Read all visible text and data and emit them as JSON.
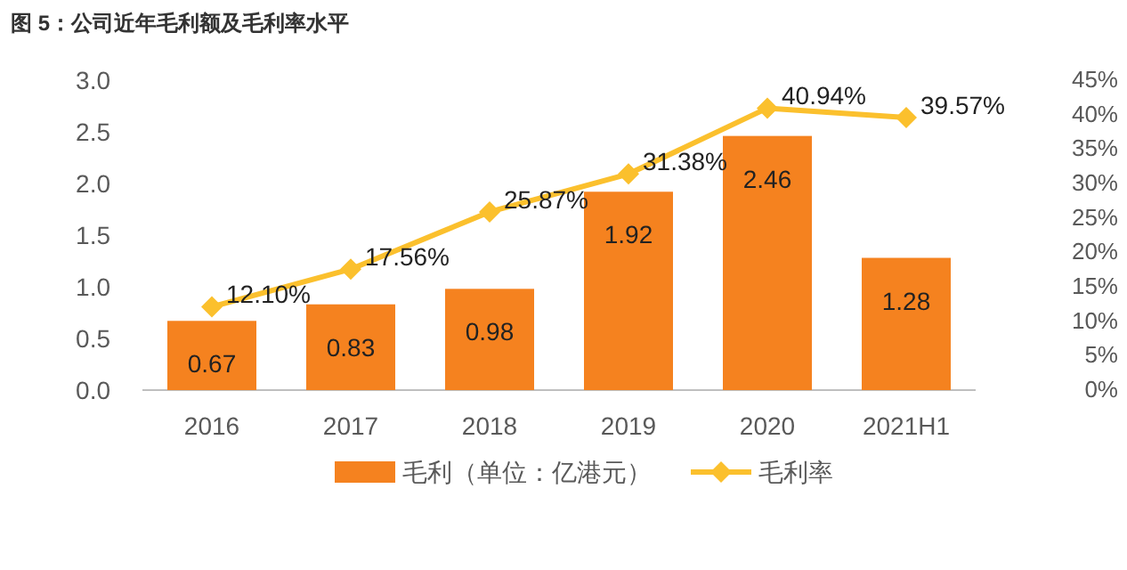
{
  "chart_data": {
    "type": "bar",
    "title": "图 5：公司近年毛利额及毛利率水平",
    "categories": [
      "2016",
      "2017",
      "2018",
      "2019",
      "2020",
      "2021H1"
    ],
    "series": [
      {
        "name": "毛利（单位：亿港元）",
        "color": "#f5821f",
        "values": [
          0.67,
          0.83,
          0.98,
          1.92,
          2.46,
          1.28
        ],
        "data_labels": true
      },
      {
        "name": "毛利率",
        "type": "line",
        "axis": "y2",
        "color": "#fbc02d",
        "marker": "diamond",
        "values": [
          12.1,
          17.56,
          25.87,
          31.38,
          40.94,
          39.57
        ],
        "value_labels": [
          "12.10%",
          "17.56%",
          "25.87%",
          "31.38%",
          "40.94%",
          "39.57%"
        ]
      }
    ],
    "ylim": [
      0,
      3.0
    ],
    "yticks": [
      {
        "value": 0,
        "label": "0.0"
      },
      {
        "value": 0.5,
        "label": "0.5"
      },
      {
        "value": 1,
        "label": "1.0"
      },
      {
        "value": 1.5,
        "label": "1.5"
      },
      {
        "value": 2,
        "label": "2.0"
      },
      {
        "value": 2.5,
        "label": "2.5"
      },
      {
        "value": 3,
        "label": "3.0"
      }
    ],
    "y2lim": [
      0,
      45
    ],
    "y2ticks": [
      {
        "value": 0,
        "label": "0%"
      },
      {
        "value": 5,
        "label": "5%"
      },
      {
        "value": 10,
        "label": "10%"
      },
      {
        "value": 15,
        "label": "15%"
      },
      {
        "value": 20,
        "label": "20%"
      },
      {
        "value": 25,
        "label": "25%"
      },
      {
        "value": 30,
        "label": "30%"
      },
      {
        "value": 35,
        "label": "35%"
      },
      {
        "value": 40,
        "label": "40%"
      },
      {
        "value": 45,
        "label": "45%"
      }
    ],
    "legend": "bottom",
    "grid": false
  }
}
